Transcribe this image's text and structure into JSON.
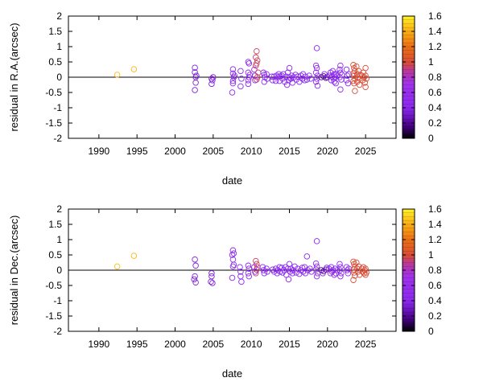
{
  "chart_data": [
    {
      "type": "scatter",
      "xlabel": "date",
      "ylabel": "residual in R.A.(arcsec)",
      "xlim": [
        1986,
        2029
      ],
      "ylim": [
        -2,
        2
      ],
      "xticks": [
        "1990",
        "1995",
        "2000",
        "2005",
        "2010",
        "2015",
        "2020",
        "2025"
      ],
      "yticks": [
        "-2",
        "-1.5",
        "-1",
        "-0.5",
        "0",
        "0.5",
        "1",
        "1.5",
        "2"
      ],
      "colorbar": {
        "range": [
          0,
          1.6
        ],
        "ticks": [
          "0",
          "0.2",
          "0.4",
          "0.6",
          "0.8",
          "1",
          "1.2",
          "1.4",
          "1.6"
        ]
      },
      "grid": false,
      "points": [
        [
          1992.4,
          0.08,
          1.45
        ],
        [
          1994.6,
          0.26,
          1.42
        ],
        [
          2002.6,
          0.31,
          0.35
        ],
        [
          2002.6,
          0.16,
          0.35
        ],
        [
          2002.7,
          0.0,
          0.35
        ],
        [
          2002.7,
          -0.18,
          0.35
        ],
        [
          2002.6,
          -0.42,
          0.35
        ],
        [
          2002.8,
          0.05,
          0.35
        ],
        [
          2004.8,
          -0.05,
          0.35
        ],
        [
          2004.8,
          -0.22,
          0.35
        ],
        [
          2005.0,
          0.0,
          0.35
        ],
        [
          2004.9,
          -0.1,
          0.35
        ],
        [
          2007.6,
          0.26,
          0.4
        ],
        [
          2007.6,
          0.12,
          0.4
        ],
        [
          2007.7,
          0.0,
          0.4
        ],
        [
          2007.6,
          -0.12,
          0.4
        ],
        [
          2007.6,
          -0.2,
          0.4
        ],
        [
          2007.5,
          -0.5,
          0.4
        ],
        [
          2007.8,
          0.05,
          0.4
        ],
        [
          2008.6,
          0.2,
          0.4
        ],
        [
          2008.7,
          -0.05,
          0.4
        ],
        [
          2008.6,
          -0.3,
          0.4
        ],
        [
          2009.6,
          0.5,
          0.45
        ],
        [
          2009.7,
          0.45,
          0.45
        ],
        [
          2009.6,
          0.15,
          0.45
        ],
        [
          2009.7,
          0.0,
          0.45
        ],
        [
          2009.6,
          -0.1,
          0.45
        ],
        [
          2009.6,
          -0.22,
          0.45
        ],
        [
          2009.8,
          0.08,
          0.45
        ],
        [
          2010.4,
          0.25,
          0.45
        ],
        [
          2010.5,
          0.05,
          0.45
        ],
        [
          2010.5,
          -0.1,
          0.45
        ],
        [
          2010.7,
          0.85,
          0.95
        ],
        [
          2010.6,
          0.65,
          0.95
        ],
        [
          2010.8,
          0.55,
          0.95
        ],
        [
          2010.7,
          0.45,
          0.95
        ],
        [
          2010.6,
          0.38,
          0.95
        ],
        [
          2010.9,
          0.15,
          0.95
        ],
        [
          2010.8,
          0.0,
          0.95
        ],
        [
          2010.7,
          -0.08,
          0.95
        ],
        [
          2011.6,
          0.15,
          0.4
        ],
        [
          2011.7,
          0.08,
          0.4
        ],
        [
          2011.8,
          0.0,
          0.4
        ],
        [
          2011.7,
          -0.15,
          0.4
        ],
        [
          2012.0,
          0.1,
          0.4
        ],
        [
          2012.1,
          -0.05,
          0.4
        ],
        [
          2012.7,
          0.02,
          0.4
        ],
        [
          2012.8,
          -0.1,
          0.4
        ],
        [
          2013.0,
          0.02,
          0.45
        ],
        [
          2013.2,
          -0.12,
          0.4
        ],
        [
          2013.3,
          0.05,
          0.4
        ],
        [
          2013.5,
          0.0,
          0.4
        ],
        [
          2013.6,
          0.1,
          0.4
        ],
        [
          2013.7,
          -0.12,
          0.4
        ],
        [
          2013.8,
          0.03,
          0.4
        ],
        [
          2014.0,
          0.05,
          0.4
        ],
        [
          2014.1,
          -0.05,
          0.4
        ],
        [
          2014.2,
          0.1,
          0.4
        ],
        [
          2014.4,
          -0.15,
          0.4
        ],
        [
          2014.6,
          0.02,
          0.4
        ],
        [
          2014.7,
          -0.25,
          0.4
        ],
        [
          2014.8,
          0.15,
          0.4
        ],
        [
          2014.9,
          -0.1,
          0.4
        ],
        [
          2015.0,
          0.3,
          0.4
        ],
        [
          2015.0,
          0.0,
          0.4
        ],
        [
          2015.2,
          -0.05,
          0.4
        ],
        [
          2015.3,
          0.05,
          0.4
        ],
        [
          2015.4,
          -0.18,
          0.4
        ],
        [
          2015.6,
          0.0,
          0.4
        ],
        [
          2015.8,
          0.08,
          0.4
        ],
        [
          2015.9,
          -0.08,
          0.4
        ],
        [
          2016.1,
          0.02,
          0.4
        ],
        [
          2016.3,
          -0.15,
          0.4
        ],
        [
          2016.5,
          0.05,
          0.4
        ],
        [
          2016.7,
          -0.05,
          0.4
        ],
        [
          2016.8,
          0.1,
          0.4
        ],
        [
          2017.0,
          -0.1,
          0.4
        ],
        [
          2017.1,
          0.02,
          0.4
        ],
        [
          2017.3,
          -0.08,
          0.4
        ],
        [
          2017.6,
          0.05,
          0.4
        ],
        [
          2017.8,
          -0.05,
          0.4
        ],
        [
          2018.6,
          0.95,
          0.45
        ],
        [
          2018.5,
          0.38,
          0.45
        ],
        [
          2018.6,
          0.3,
          0.45
        ],
        [
          2018.5,
          0.15,
          0.45
        ],
        [
          2018.7,
          0.05,
          0.45
        ],
        [
          2018.6,
          -0.05,
          0.45
        ],
        [
          2018.5,
          -0.15,
          0.45
        ],
        [
          2018.7,
          -0.28,
          0.45
        ],
        [
          2019.2,
          0.0,
          0.2
        ],
        [
          2019.5,
          0.03,
          0.2
        ],
        [
          2019.8,
          -0.02,
          0.2
        ],
        [
          2020.0,
          0.0,
          0.25
        ],
        [
          2019.6,
          0.1,
          0.4
        ],
        [
          2020.2,
          0.05,
          0.4
        ],
        [
          2020.4,
          0.15,
          0.4
        ],
        [
          2020.5,
          -0.1,
          0.4
        ],
        [
          2020.6,
          0.02,
          0.4
        ],
        [
          2020.7,
          0.2,
          0.4
        ],
        [
          2020.8,
          -0.05,
          0.4
        ],
        [
          2020.9,
          0.1,
          0.4
        ],
        [
          2020.9,
          -0.15,
          0.4
        ],
        [
          2021.0,
          0.0,
          0.4
        ],
        [
          2021.1,
          0.1,
          0.4
        ],
        [
          2021.1,
          -0.2,
          0.4
        ],
        [
          2021.3,
          0.05,
          0.4
        ],
        [
          2021.7,
          0.38,
          0.4
        ],
        [
          2021.6,
          0.25,
          0.4
        ],
        [
          2021.7,
          0.15,
          0.4
        ],
        [
          2021.6,
          0.0,
          0.4
        ],
        [
          2021.8,
          -0.08,
          0.4
        ],
        [
          2021.7,
          -0.4,
          0.4
        ],
        [
          2021.9,
          0.08,
          0.4
        ],
        [
          2022.5,
          0.25,
          0.4
        ],
        [
          2022.6,
          0.05,
          0.4
        ],
        [
          2022.5,
          -0.1,
          0.4
        ],
        [
          2022.7,
          -0.2,
          0.4
        ],
        [
          2022.8,
          0.1,
          0.4
        ],
        [
          2023.4,
          0.4,
          1.0
        ],
        [
          2023.5,
          0.3,
          1.0
        ],
        [
          2023.6,
          0.2,
          1.0
        ],
        [
          2023.4,
          0.12,
          1.0
        ],
        [
          2023.5,
          0.05,
          1.0
        ],
        [
          2023.6,
          -0.05,
          1.0
        ],
        [
          2023.4,
          -0.12,
          1.0
        ],
        [
          2023.5,
          -0.2,
          1.0
        ],
        [
          2023.6,
          -0.45,
          1.0
        ],
        [
          2023.8,
          0.35,
          1.0
        ],
        [
          2023.9,
          0.1,
          1.0
        ],
        [
          2024.0,
          0.0,
          1.0
        ],
        [
          2023.9,
          -0.15,
          1.0
        ],
        [
          2024.1,
          0.2,
          1.0
        ],
        [
          2024.2,
          -0.05,
          1.0
        ],
        [
          2024.3,
          0.08,
          1.0
        ],
        [
          2024.2,
          -0.25,
          1.0
        ],
        [
          2024.5,
          0.05,
          1.0
        ],
        [
          2024.6,
          -0.1,
          1.0
        ],
        [
          2024.7,
          0.15,
          1.0
        ],
        [
          2024.8,
          0.0,
          1.0
        ],
        [
          2024.9,
          -0.18,
          1.0
        ],
        [
          2025.0,
          0.3,
          1.0
        ],
        [
          2025.0,
          0.05,
          1.0
        ],
        [
          2025.1,
          -0.05,
          1.0
        ],
        [
          2025.0,
          -0.32,
          1.0
        ]
      ]
    },
    {
      "type": "scatter",
      "xlabel": "date",
      "ylabel": "residual in Dec.(arcsec)",
      "xlim": [
        1986,
        2029
      ],
      "ylim": [
        -2,
        2
      ],
      "xticks": [
        "1990",
        "1995",
        "2000",
        "2005",
        "2010",
        "2015",
        "2020",
        "2025"
      ],
      "yticks": [
        "-2",
        "-1.5",
        "-1",
        "-0.5",
        "0",
        "0.5",
        "1",
        "1.5",
        "2"
      ],
      "colorbar": {
        "range": [
          0,
          1.6
        ],
        "ticks": [
          "0",
          "0.2",
          "0.4",
          "0.6",
          "0.8",
          "1",
          "1.2",
          "1.4",
          "1.6"
        ]
      },
      "grid": false,
      "points": [
        [
          1992.4,
          0.12,
          1.45
        ],
        [
          1994.6,
          0.47,
          1.42
        ],
        [
          2002.6,
          0.35,
          0.35
        ],
        [
          2002.7,
          0.15,
          0.35
        ],
        [
          2002.6,
          -0.2,
          0.35
        ],
        [
          2002.5,
          -0.3,
          0.35
        ],
        [
          2002.7,
          -0.4,
          0.35
        ],
        [
          2004.8,
          -0.1,
          0.35
        ],
        [
          2004.8,
          -0.2,
          0.35
        ],
        [
          2004.7,
          -0.38,
          0.35
        ],
        [
          2004.9,
          -0.42,
          0.35
        ],
        [
          2007.6,
          0.65,
          0.45
        ],
        [
          2007.7,
          0.55,
          0.45
        ],
        [
          2007.5,
          0.5,
          0.45
        ],
        [
          2007.6,
          0.35,
          0.45
        ],
        [
          2007.7,
          0.18,
          0.45
        ],
        [
          2007.6,
          0.12,
          0.45
        ],
        [
          2007.5,
          -0.25,
          0.45
        ],
        [
          2008.5,
          0.1,
          0.4
        ],
        [
          2008.6,
          -0.05,
          0.4
        ],
        [
          2008.6,
          -0.2,
          0.4
        ],
        [
          2008.7,
          -0.38,
          0.4
        ],
        [
          2009.6,
          0.15,
          0.45
        ],
        [
          2009.7,
          0.05,
          0.45
        ],
        [
          2009.6,
          -0.1,
          0.45
        ],
        [
          2009.7,
          -0.2,
          0.45
        ],
        [
          2010.6,
          0.3,
          0.95
        ],
        [
          2010.7,
          0.2,
          0.95
        ],
        [
          2010.8,
          0.1,
          0.95
        ],
        [
          2010.7,
          0.02,
          0.95
        ],
        [
          2010.6,
          -0.1,
          0.95
        ],
        [
          2010.4,
          0.1,
          0.4
        ],
        [
          2010.5,
          -0.05,
          0.4
        ],
        [
          2011.5,
          0.1,
          0.4
        ],
        [
          2011.6,
          0.0,
          0.4
        ],
        [
          2011.7,
          -0.1,
          0.4
        ],
        [
          2012.0,
          0.05,
          0.4
        ],
        [
          2012.1,
          -0.05,
          0.4
        ],
        [
          2012.8,
          0.02,
          0.4
        ],
        [
          2013.0,
          -0.05,
          0.45
        ],
        [
          2013.2,
          0.05,
          0.4
        ],
        [
          2013.4,
          -0.1,
          0.4
        ],
        [
          2013.5,
          0.0,
          0.4
        ],
        [
          2013.7,
          0.1,
          0.4
        ],
        [
          2013.8,
          -0.05,
          0.4
        ],
        [
          2014.0,
          0.08,
          0.4
        ],
        [
          2014.1,
          -0.08,
          0.4
        ],
        [
          2014.3,
          0.0,
          0.4
        ],
        [
          2014.5,
          0.1,
          0.4
        ],
        [
          2014.6,
          -0.15,
          0.4
        ],
        [
          2014.8,
          0.05,
          0.4
        ],
        [
          2014.9,
          -0.3,
          0.4
        ],
        [
          2015.0,
          0.2,
          0.4
        ],
        [
          2015.1,
          -0.05,
          0.4
        ],
        [
          2015.2,
          0.05,
          0.4
        ],
        [
          2015.4,
          -0.1,
          0.4
        ],
        [
          2015.5,
          0.0,
          0.4
        ],
        [
          2015.7,
          0.12,
          0.4
        ],
        [
          2015.9,
          -0.08,
          0.4
        ],
        [
          2016.1,
          0.05,
          0.4
        ],
        [
          2016.3,
          -0.12,
          0.4
        ],
        [
          2016.5,
          0.0,
          0.4
        ],
        [
          2016.7,
          0.08,
          0.4
        ],
        [
          2016.8,
          -0.05,
          0.4
        ],
        [
          2017.0,
          0.1,
          0.4
        ],
        [
          2017.1,
          -0.1,
          0.4
        ],
        [
          2017.3,
          0.45,
          0.4
        ],
        [
          2017.4,
          0.0,
          0.4
        ],
        [
          2017.7,
          0.05,
          0.4
        ],
        [
          2017.9,
          -0.05,
          0.4
        ],
        [
          2018.6,
          0.95,
          0.45
        ],
        [
          2018.5,
          0.22,
          0.45
        ],
        [
          2018.6,
          0.12,
          0.45
        ],
        [
          2018.5,
          0.02,
          0.45
        ],
        [
          2018.7,
          -0.1,
          0.45
        ],
        [
          2018.6,
          -0.2,
          0.45
        ],
        [
          2019.2,
          0.0,
          0.2
        ],
        [
          2019.5,
          -0.03,
          0.2
        ],
        [
          2019.8,
          0.02,
          0.2
        ],
        [
          2019.4,
          -0.1,
          0.4
        ],
        [
          2019.9,
          0.08,
          0.4
        ],
        [
          2020.2,
          0.05,
          0.4
        ],
        [
          2020.4,
          -0.1,
          0.4
        ],
        [
          2020.5,
          0.1,
          0.4
        ],
        [
          2020.6,
          -0.05,
          0.4
        ],
        [
          2020.7,
          0.0,
          0.4
        ],
        [
          2020.9,
          -0.15,
          0.4
        ],
        [
          2021.0,
          0.05,
          0.4
        ],
        [
          2021.1,
          -0.1,
          0.4
        ],
        [
          2021.3,
          0.0,
          0.4
        ],
        [
          2021.6,
          0.2,
          0.4
        ],
        [
          2021.7,
          0.1,
          0.4
        ],
        [
          2021.6,
          0.0,
          0.4
        ],
        [
          2021.8,
          -0.1,
          0.4
        ],
        [
          2021.7,
          -0.2,
          0.4
        ],
        [
          2022.5,
          0.1,
          0.4
        ],
        [
          2022.6,
          0.0,
          0.4
        ],
        [
          2022.7,
          -0.1,
          0.4
        ],
        [
          2022.8,
          0.05,
          0.4
        ],
        [
          2023.4,
          0.28,
          1.0
        ],
        [
          2023.5,
          0.2,
          1.0
        ],
        [
          2023.6,
          0.1,
          1.0
        ],
        [
          2023.4,
          0.02,
          1.0
        ],
        [
          2023.5,
          -0.08,
          1.0
        ],
        [
          2023.6,
          -0.18,
          1.0
        ],
        [
          2023.4,
          -0.32,
          1.0
        ],
        [
          2023.8,
          0.25,
          1.0
        ],
        [
          2023.9,
          0.05,
          1.0
        ],
        [
          2024.0,
          -0.05,
          1.0
        ],
        [
          2024.1,
          0.12,
          1.0
        ],
        [
          2024.2,
          -0.15,
          1.0
        ],
        [
          2024.5,
          0.05,
          1.0
        ],
        [
          2024.6,
          -0.05,
          1.0
        ],
        [
          2024.7,
          0.1,
          1.0
        ],
        [
          2024.8,
          -0.1,
          1.0
        ],
        [
          2024.9,
          0.0,
          1.0
        ],
        [
          2025.0,
          0.05,
          1.0
        ],
        [
          2025.1,
          -0.08,
          1.0
        ],
        [
          2025.0,
          -0.15,
          1.0
        ]
      ]
    }
  ]
}
